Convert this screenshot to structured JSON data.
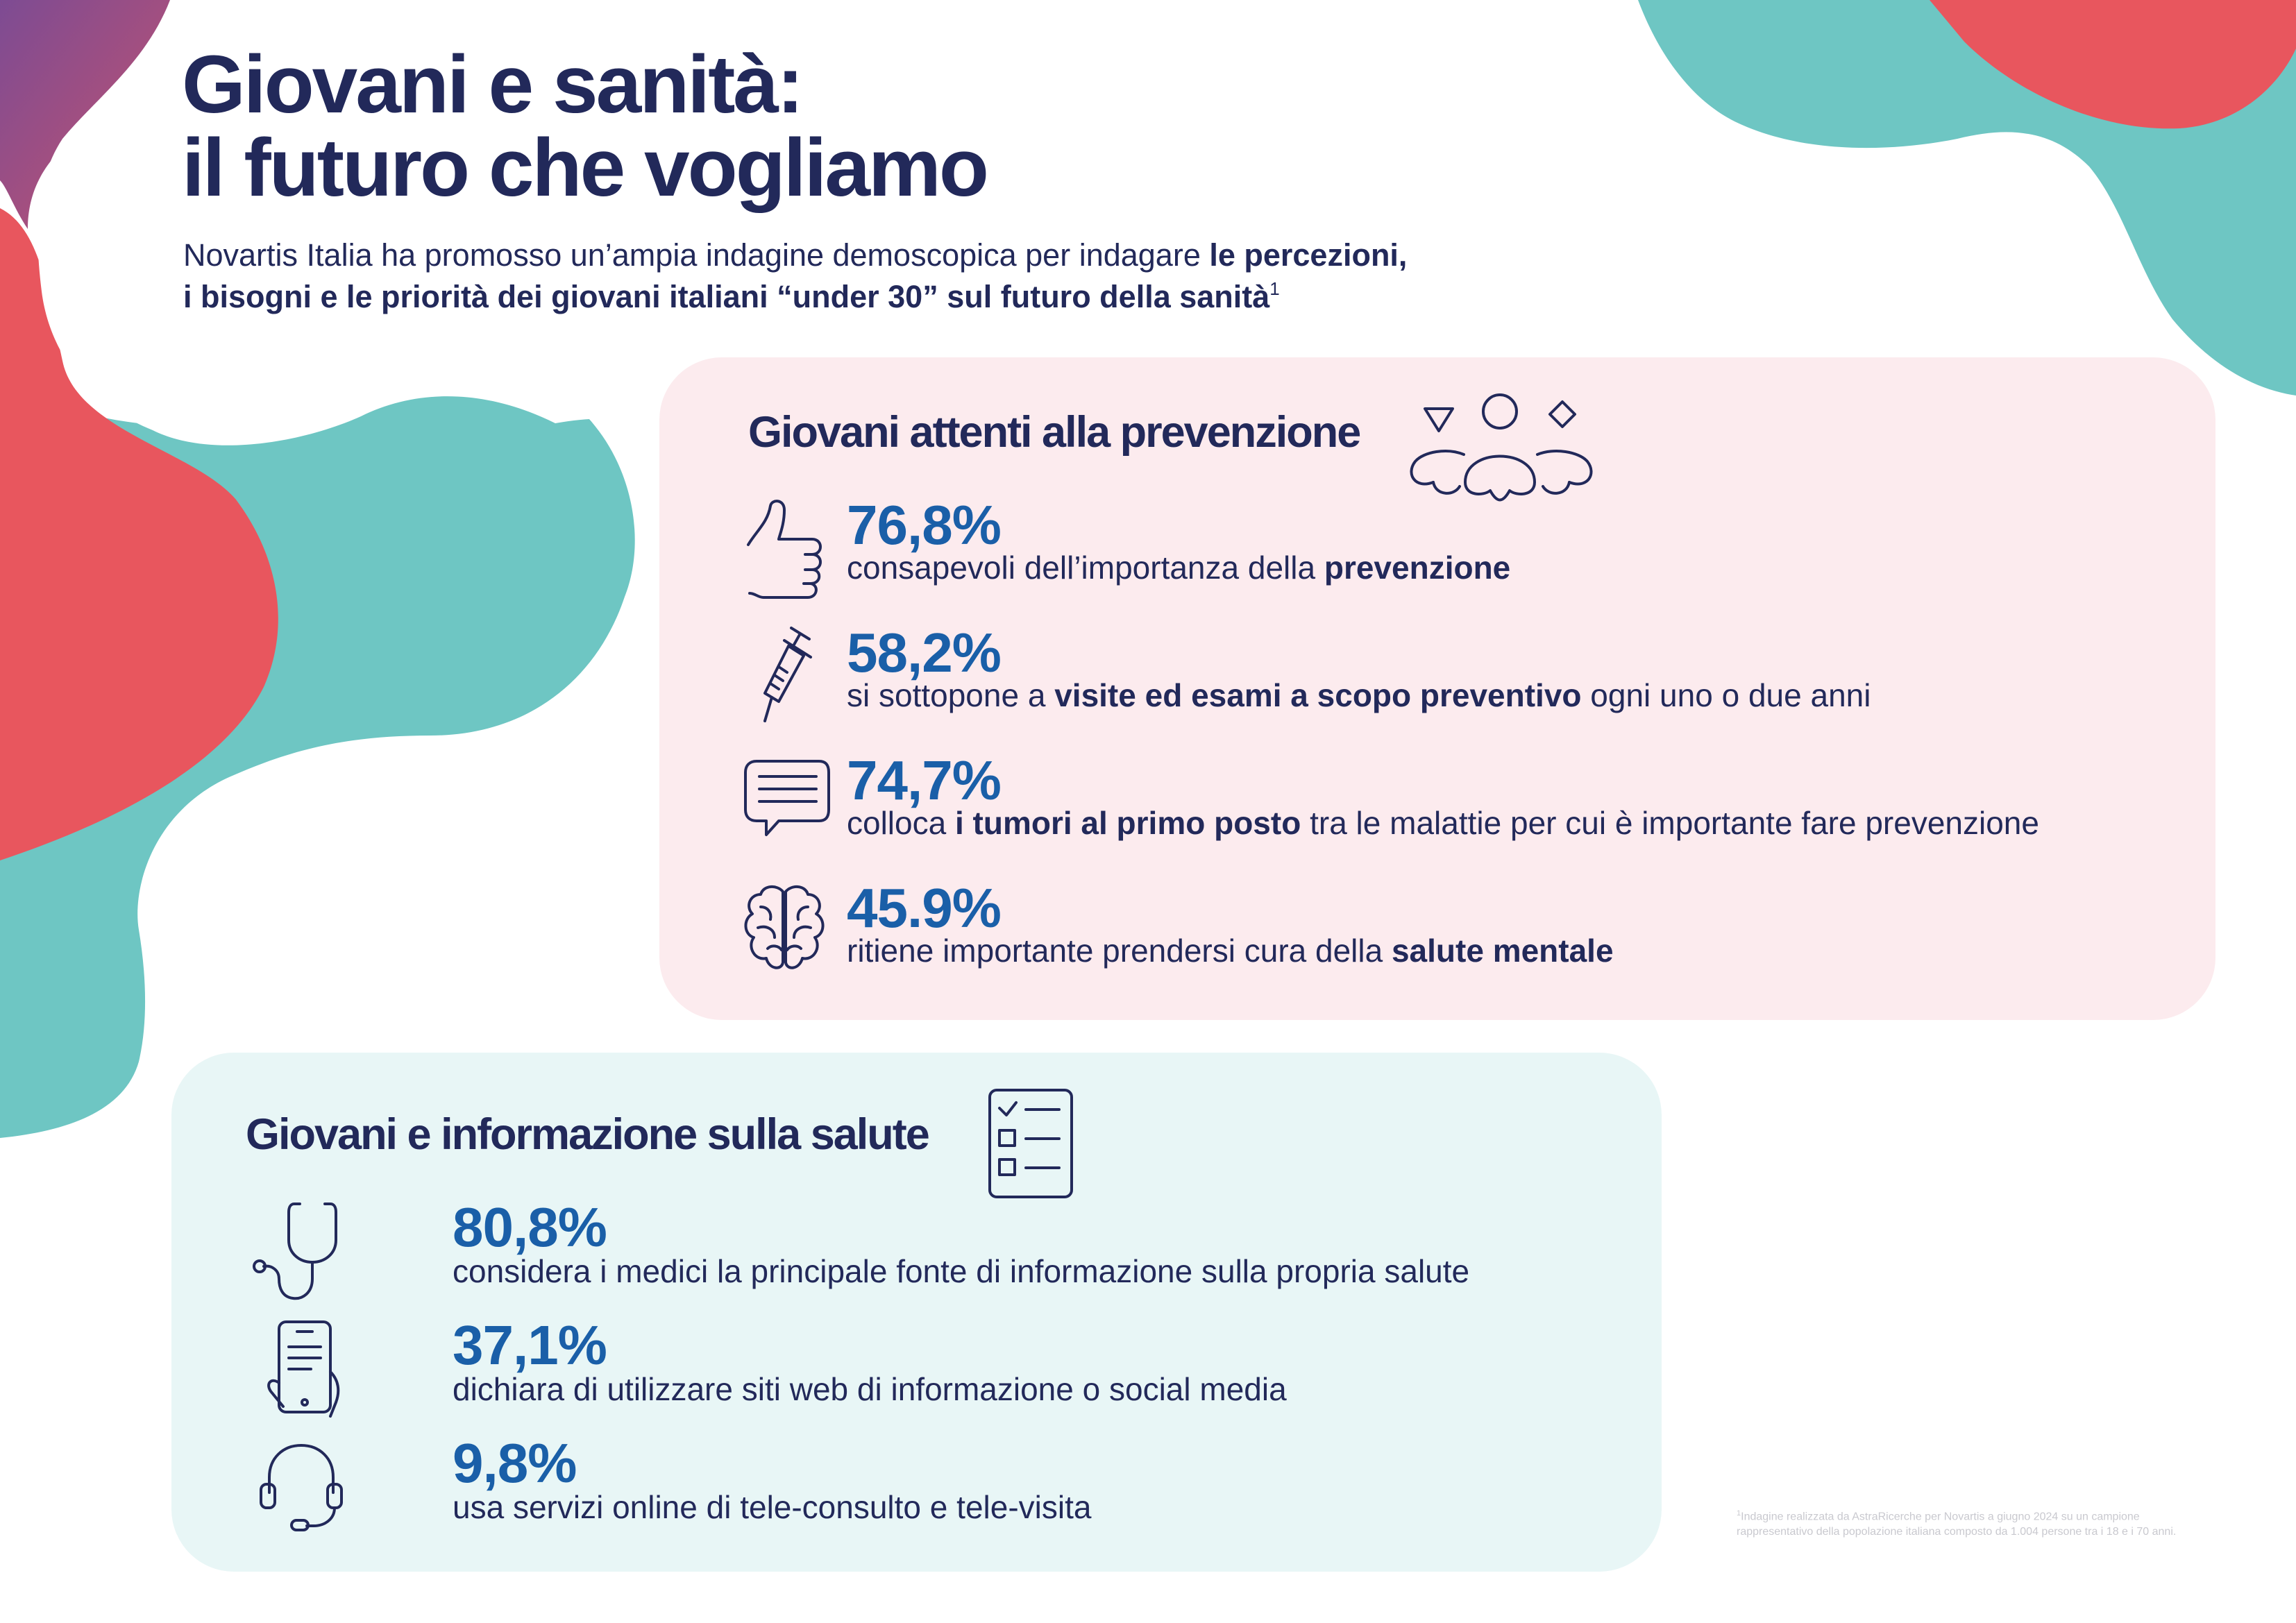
{
  "page": {
    "title_line1": "Giovani e sanità:",
    "title_line2": "il futuro che vogliamo",
    "intro": {
      "line1_plain": "Novartis Italia ha promosso un’ampia indagine demoscopica per indagare ",
      "line1_bold": "le percezioni,",
      "line2_bold": "i bisogni e le priorità dei giovani italiani “under 30” sul futuro della sanità",
      "line2_sup": "1"
    }
  },
  "colors": {
    "navy": "#22295a",
    "blue": "#1a5fa8",
    "teal": "#6ec6c3",
    "coral": "#e8565e",
    "purple": "#8a4a8f",
    "card_pink": "#fcebee",
    "card_mint": "#e8f6f6"
  },
  "prevention": {
    "title": "Giovani attenti alla prevenzione",
    "icon": "people-group-icon",
    "stats": [
      {
        "icon": "thumbs-up-icon",
        "value": "76,8%",
        "pre": "consapevoli dell’importanza della ",
        "bold": "prevenzione",
        "post": ""
      },
      {
        "icon": "syringe-icon",
        "value": "58,2%",
        "pre": "si sottopone a ",
        "bold": "visite ed esami a scopo preventivo",
        "post": " ogni uno o due anni"
      },
      {
        "icon": "chat-bubble-icon",
        "value": "74,7%",
        "pre": "colloca ",
        "bold": "i tumori al primo posto",
        "post": " tra le malattie per cui è importante fare prevenzione"
      },
      {
        "icon": "brain-icon",
        "value": "45.9%",
        "pre": "ritiene importante prendersi cura della ",
        "bold": "salute mentale",
        "post": ""
      }
    ]
  },
  "information": {
    "title": "Giovani e informazione sulla salute",
    "icon": "checklist-icon",
    "stats": [
      {
        "icon": "stethoscope-icon",
        "value": "80,8%",
        "text": "considera i medici la principale fonte di informazione sulla propria salute"
      },
      {
        "icon": "smartphone-icon",
        "value": "37,1%",
        "text": "dichiara di utilizzare siti web di informazione o social media"
      },
      {
        "icon": "headset-icon",
        "value": "9,8%",
        "text": "usa servizi online di tele-consulto e tele-visita"
      }
    ]
  },
  "footnote": {
    "sup": "1",
    "line1": "Indagine realizzata da AstraRicerche per Novartis a giugno 2024 su un campione",
    "line2": "rappresentativo della popolazione italiana composto da 1.004 persone tra i 18 e i 70 anni."
  }
}
